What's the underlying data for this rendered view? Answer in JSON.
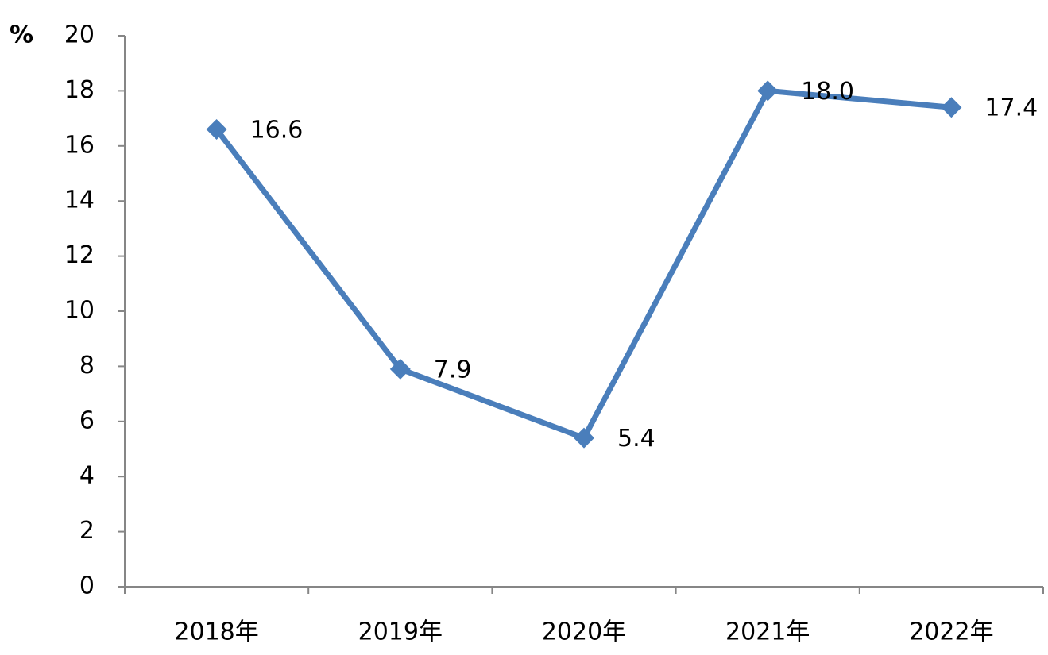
{
  "chart_data": {
    "type": "line",
    "y_label": "%",
    "categories": [
      "2018年",
      "2019年",
      "2020年",
      "2021年",
      "2022年"
    ],
    "values": [
      16.6,
      7.9,
      5.4,
      18.0,
      17.4
    ],
    "value_labels": [
      "16.6",
      "7.9",
      "5.4",
      "18.0",
      "17.4"
    ],
    "color": "#4a7ebb",
    "ylim": [
      0,
      20
    ],
    "yticks": [
      0,
      2,
      4,
      6,
      8,
      10,
      12,
      14,
      16,
      18,
      20
    ]
  }
}
